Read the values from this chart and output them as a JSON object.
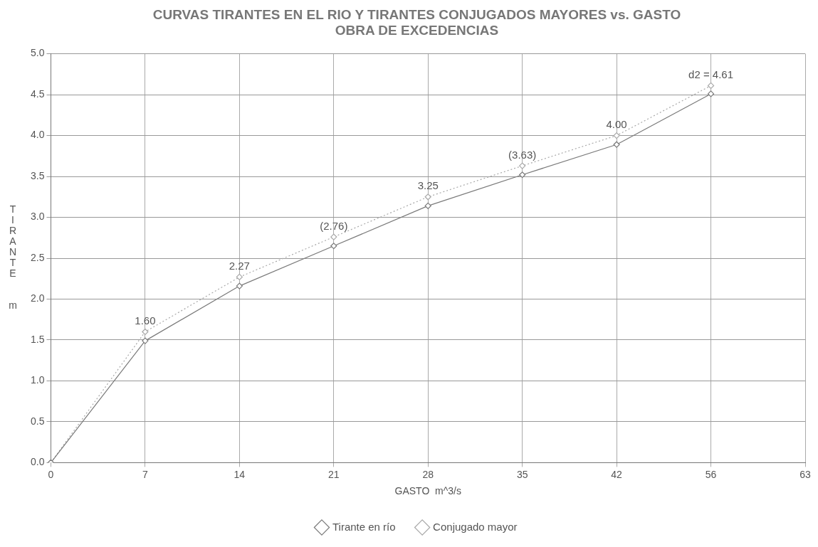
{
  "chart_data": {
    "type": "line",
    "title": "CURVAS TIRANTES EN EL RIO Y TIRANTES CONJUGADOS MAYORES vs. GASTO\nOBRA DE EXCEDENCIAS",
    "xlabel": "GASTO  m^3/s",
    "ylabel": "TIRANTE  m",
    "categories": [
      "0",
      "7",
      "14",
      "21",
      "28",
      "35",
      "42",
      "56",
      "63"
    ],
    "series": [
      {
        "name": "Tirante en río",
        "color": "#7a7a7a",
        "line_style": "solid",
        "values": [
          0,
          1.49,
          2.16,
          2.65,
          3.14,
          3.52,
          3.89,
          4.51,
          null
        ]
      },
      {
        "name": "Conjugado mayor",
        "color": "#a8a8a8",
        "line_style": "dotted",
        "values": [
          0,
          1.6,
          2.27,
          2.76,
          3.25,
          3.63,
          4.0,
          4.61,
          null
        ],
        "value_labels": [
          null,
          "1.60",
          "2.27",
          "(2.76)",
          "3.25",
          "(3.63)",
          "4.00",
          "d2 = 4.61",
          null
        ]
      }
    ],
    "ylim": [
      0,
      5
    ],
    "yticks": [
      {
        "value": 0,
        "label": "0.0"
      },
      0.5,
      {
        "value": 1,
        "label": "1.0"
      },
      1.5,
      {
        "value": 2,
        "label": "2.0"
      },
      2.5,
      {
        "value": 3,
        "label": "3.0"
      },
      3.5,
      {
        "value": 4,
        "label": "4.0"
      },
      4.5,
      {
        "value": 5,
        "label": "5.0"
      }
    ],
    "grid": true,
    "legend": "bottom",
    "marker": "diamond"
  }
}
